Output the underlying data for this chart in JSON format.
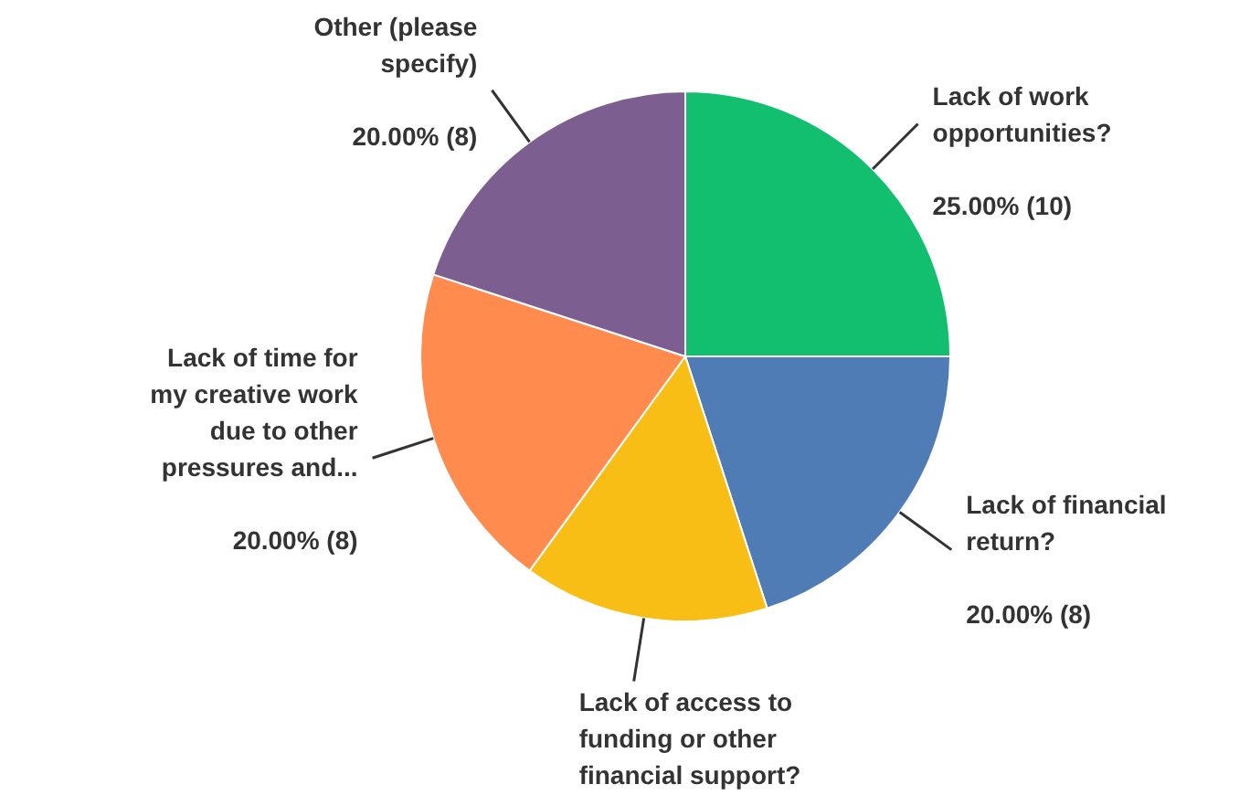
{
  "chart_data": {
    "type": "pie",
    "categories": [
      "Lack of work opportunities?",
      "Lack of financial return?",
      "Lack of access to funding or other financial support?",
      "Lack of time for my creative work due to other pressures and...",
      "Other (please specify)"
    ],
    "values": [
      25,
      20,
      15,
      20,
      20
    ],
    "colors": [
      "#12bf6f",
      "#507cb6",
      "#f9be15",
      "#ff8b4f",
      "#7d5e90"
    ],
    "value_labels": [
      "25.00% (10)",
      "20.00% (8)",
      null,
      "20.00% (8)",
      "20.00% (8)"
    ]
  }
}
